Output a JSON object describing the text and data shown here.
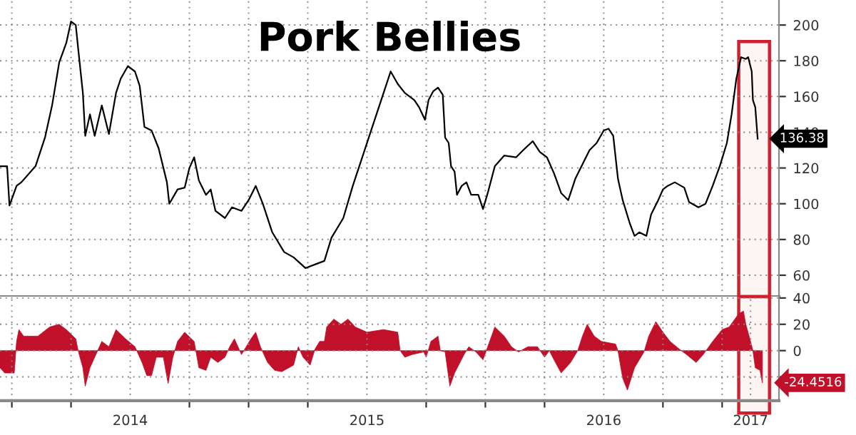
{
  "chart_data": [
    {
      "type": "line",
      "title": "Pork Bellies",
      "tick_labels": "y",
      "grid": true,
      "legend": false,
      "xlim": [
        2013.95,
        2017.24
      ],
      "ylim": [
        48,
        214
      ],
      "xticks": [
        {
          "value": 2014,
          "label": null
        },
        {
          "value": 2014.25,
          "label": null
        },
        {
          "value": 2014.5,
          "label": null
        },
        {
          "value": 2014.75,
          "label": null
        },
        {
          "value": 2015,
          "label": null
        },
        {
          "value": 2015.25,
          "label": null
        },
        {
          "value": 2015.5,
          "label": null
        },
        {
          "value": 2015.75,
          "label": null
        },
        {
          "value": 2016,
          "label": null
        },
        {
          "value": 2016.25,
          "label": null
        },
        {
          "value": 2016.5,
          "label": null
        },
        {
          "value": 2016.75,
          "label": null
        },
        {
          "value": 2017,
          "label": null
        }
      ],
      "yticks": [
        60,
        80,
        100,
        120,
        140,
        160,
        180,
        200
      ],
      "series": [
        {
          "color": "#000000",
          "x": [
            2013.95,
            2013.98,
            2013.99,
            2014.02,
            2014.04,
            2014.1,
            2014.14,
            2014.17,
            2014.2,
            2014.23,
            2014.25,
            2014.27,
            2014.28,
            2014.3,
            2014.31,
            2014.33,
            2014.35,
            2014.38,
            2014.41,
            2014.44,
            2014.46,
            2014.49,
            2014.52,
            2014.54,
            2014.56,
            2014.59,
            2014.62,
            2014.655,
            2014.665,
            2014.7,
            2014.73,
            2014.75,
            2014.77,
            2014.79,
            2014.82,
            2014.84,
            2014.86,
            2014.9,
            2014.93,
            2014.97,
            2015.0,
            2015.03,
            2015.06,
            2015.1,
            2015.15,
            2015.19,
            2015.24,
            2015.28,
            2015.32,
            2015.35,
            2015.4,
            2015.44,
            2015.48,
            2015.52,
            2015.56,
            2015.6,
            2015.63,
            2015.66,
            2015.7,
            2015.72,
            2015.745,
            2015.76,
            2015.78,
            2015.8,
            2015.82,
            2015.83,
            2015.845,
            2015.855,
            2015.87,
            2015.88,
            2015.9,
            2015.92,
            2015.94,
            2015.97,
            2015.99,
            2016.01,
            2016.04,
            2016.08,
            2016.13,
            2016.16,
            2016.2,
            2016.23,
            2016.26,
            2016.29,
            2016.32,
            2016.35,
            2016.38,
            2016.41,
            2016.44,
            2016.47,
            2016.5,
            2016.52,
            2016.54,
            2016.56,
            2016.58,
            2016.61,
            2016.63,
            2016.65,
            2016.68,
            2016.7,
            2016.73,
            2016.75,
            2016.77,
            2016.8,
            2016.84,
            2016.86,
            2016.9,
            2016.93,
            2016.96,
            2016.99,
            2017.02,
            2017.04,
            2017.06,
            2017.08,
            2017.1,
            2017.11,
            2017.125,
            2017.13,
            2017.14,
            2017.15
          ],
          "values": [
            121,
            121,
            99,
            110,
            112,
            121,
            137,
            155,
            179,
            190,
            202,
            200,
            187,
            162,
            138,
            150,
            138,
            155,
            139,
            162,
            170,
            177,
            174,
            166,
            143,
            141,
            131,
            112,
            100,
            108,
            109,
            120,
            126,
            113,
            105,
            108,
            96,
            92,
            98,
            96,
            102,
            110,
            100,
            84,
            73,
            70,
            64,
            66,
            68,
            81,
            92,
            110,
            126,
            142,
            158,
            174,
            167,
            162,
            158,
            154,
            147,
            158,
            163,
            165,
            161,
            137,
            134,
            121,
            118,
            105,
            110,
            112,
            105,
            105,
            97,
            106,
            121,
            127,
            126,
            130,
            135,
            129,
            126,
            117,
            106,
            102,
            114,
            122,
            130,
            134,
            141,
            142,
            138,
            114,
            102,
            89,
            82,
            84,
            82,
            94,
            102,
            108,
            110,
            112,
            109,
            101,
            98,
            100,
            110,
            121,
            134,
            150,
            170,
            182,
            181,
            182,
            174,
            158,
            154,
            136.38
          ]
        }
      ],
      "bands": [
        {
          "axis": "x",
          "from": 2017.07,
          "to": 2017.2,
          "color": "#d0202e"
        }
      ],
      "annotations": [
        {
          "text": "136.38",
          "x": 2017.15,
          "y": 136.38
        }
      ]
    },
    {
      "type": "area",
      "grid": true,
      "legend": false,
      "xlim": [
        2013.95,
        2017.24
      ],
      "ylim": [
        -38,
        41
      ],
      "xticks": [
        {
          "value": 2014,
          "label": null
        },
        {
          "value": 2014.25,
          "label": null
        },
        {
          "value": 2014.5,
          "label": "2014"
        },
        {
          "value": 2014.75,
          "label": null
        },
        {
          "value": 2015,
          "label": null
        },
        {
          "value": 2015.25,
          "label": null
        },
        {
          "value": 2015.5,
          "label": "2015"
        },
        {
          "value": 2015.75,
          "label": null
        },
        {
          "value": 2016,
          "label": null
        },
        {
          "value": 2016.25,
          "label": null
        },
        {
          "value": 2016.5,
          "label": "2016"
        },
        {
          "value": 2016.75,
          "label": null
        },
        {
          "value": 2017,
          "label": null
        },
        {
          "value": 2017.12,
          "label": "2017"
        }
      ],
      "yticks": [
        40,
        20,
        0,
        {
          "value": -20,
          "label": null
        }
      ],
      "series": [
        {
          "color": "#c0102a",
          "x": [
            2013.95,
            2013.97,
            2014.01,
            2014.02,
            2014.03,
            2014.05,
            2014.11,
            2014.16,
            2014.2,
            2014.23,
            2014.27,
            2014.28,
            2014.3,
            2014.31,
            2014.33,
            2014.36,
            2014.38,
            2014.41,
            2014.44,
            2014.48,
            2014.52,
            2014.55,
            2014.57,
            2014.59,
            2014.61,
            2014.64,
            2014.66,
            2014.68,
            2014.7,
            2014.73,
            2014.77,
            2014.79,
            2014.82,
            2014.84,
            2014.87,
            2014.9,
            2014.92,
            2014.94,
            2014.97,
            2015.01,
            2015.03,
            2015.05,
            2015.08,
            2015.11,
            2015.14,
            2015.19,
            2015.21,
            2015.23,
            2015.26,
            2015.28,
            2015.3,
            2015.32,
            2015.33,
            2015.36,
            2015.39,
            2015.42,
            2015.45,
            2015.5,
            2015.57,
            2015.63,
            2015.64,
            2015.66,
            2015.69,
            2015.74,
            2015.75,
            2015.77,
            2015.8,
            2015.81,
            2015.83,
            2015.85,
            2015.87,
            2015.91,
            2015.93,
            2015.96,
            2015.99,
            2016.01,
            2016.04,
            2016.08,
            2016.11,
            2016.14,
            2016.18,
            2016.22,
            2016.25,
            2016.27,
            2016.29,
            2016.32,
            2016.36,
            2016.39,
            2016.41,
            2016.43,
            2016.46,
            2016.49,
            2016.55,
            2016.56,
            2016.58,
            2016.6,
            2016.63,
            2016.67,
            2016.69,
            2016.72,
            2016.75,
            2016.78,
            2016.82,
            2016.85,
            2016.89,
            2016.92,
            2016.96,
            2017.0,
            2017.03,
            2017.07,
            2017.09,
            2017.1,
            2017.12,
            2017.13,
            2017.14,
            2017.16,
            2017.17
          ],
          "values": [
            -13,
            -17,
            -17,
            7,
            16,
            11,
            11,
            18,
            20,
            16,
            9,
            0,
            -13,
            -27,
            -13,
            -1,
            7,
            3,
            16,
            9,
            3,
            -9,
            -19,
            -19,
            -5,
            -5,
            -25,
            -5,
            7,
            14,
            7,
            -13,
            -15,
            -5,
            -9,
            -5,
            3,
            9,
            -3,
            9,
            14,
            3,
            -9,
            -15,
            -16,
            -11,
            3,
            -5,
            -11,
            1,
            7,
            7,
            18,
            24,
            20,
            24,
            18,
            14,
            16,
            14,
            0,
            -5,
            -3,
            -1,
            -5,
            7,
            11,
            0,
            -1,
            -27,
            -17,
            -3,
            3,
            -1,
            -7,
            3,
            18,
            11,
            3,
            -1,
            3,
            3,
            -5,
            0,
            -7,
            -17,
            -9,
            0,
            11,
            20,
            11,
            7,
            5,
            0,
            -21,
            -30,
            -13,
            -1,
            11,
            22,
            14,
            7,
            1,
            -3,
            -9,
            -3,
            7,
            16,
            18,
            28,
            30,
            20,
            7,
            0,
            -13,
            -15,
            -24.4516
          ]
        }
      ],
      "bands": [
        {
          "axis": "x",
          "from": 2017.07,
          "to": 2017.2,
          "color": "#d0202e"
        }
      ],
      "annotations": [
        {
          "text": "-24.4516",
          "x": 2017.17,
          "y": -24.4516
        }
      ]
    }
  ]
}
